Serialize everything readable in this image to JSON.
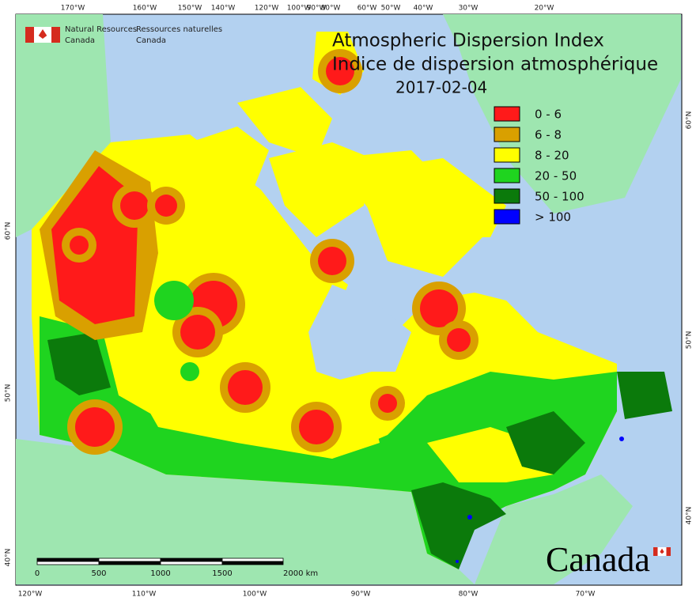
{
  "agency": {
    "en": [
      "Natural Resources",
      "Canada"
    ],
    "fr": [
      "Ressources naturelles",
      "Canada"
    ]
  },
  "title": [
    "Atmospheric Dispersion Index",
    "Indice de dispersion atmosphérique"
  ],
  "date": "2017-02-04",
  "legend": [
    {
      "label": "0 - 6",
      "color": "#ff1a1a"
    },
    {
      "label": "6 - 8",
      "color": "#d9a000"
    },
    {
      "label": "8 - 20",
      "color": "#ffff00"
    },
    {
      "label": "20 - 50",
      "color": "#1fd41f"
    },
    {
      "label": "50 - 100",
      "color": "#0b7a0b"
    },
    {
      "label": "> 100",
      "color": "#0000ff"
    }
  ],
  "longitude_top": [
    "170°W",
    "160°W",
    "150°W",
    "140°W",
    "120°W",
    "100°W",
    "90°W",
    "80°W",
    "60°W",
    "50°W",
    "40°W",
    "30°W",
    "20°W"
  ],
  "longitude_bottom": [
    "120°W",
    "110°W",
    "100°W",
    "90°W",
    "80°W",
    "70°W"
  ],
  "latitude_left": [
    "60°N",
    "50°N",
    "40°N"
  ],
  "latitude_right": [
    "60°N",
    "50°N",
    "40°N"
  ],
  "scale_bar": [
    "0",
    "500",
    "1000",
    "1500",
    "2000 km"
  ],
  "wordmark": "Canada"
}
